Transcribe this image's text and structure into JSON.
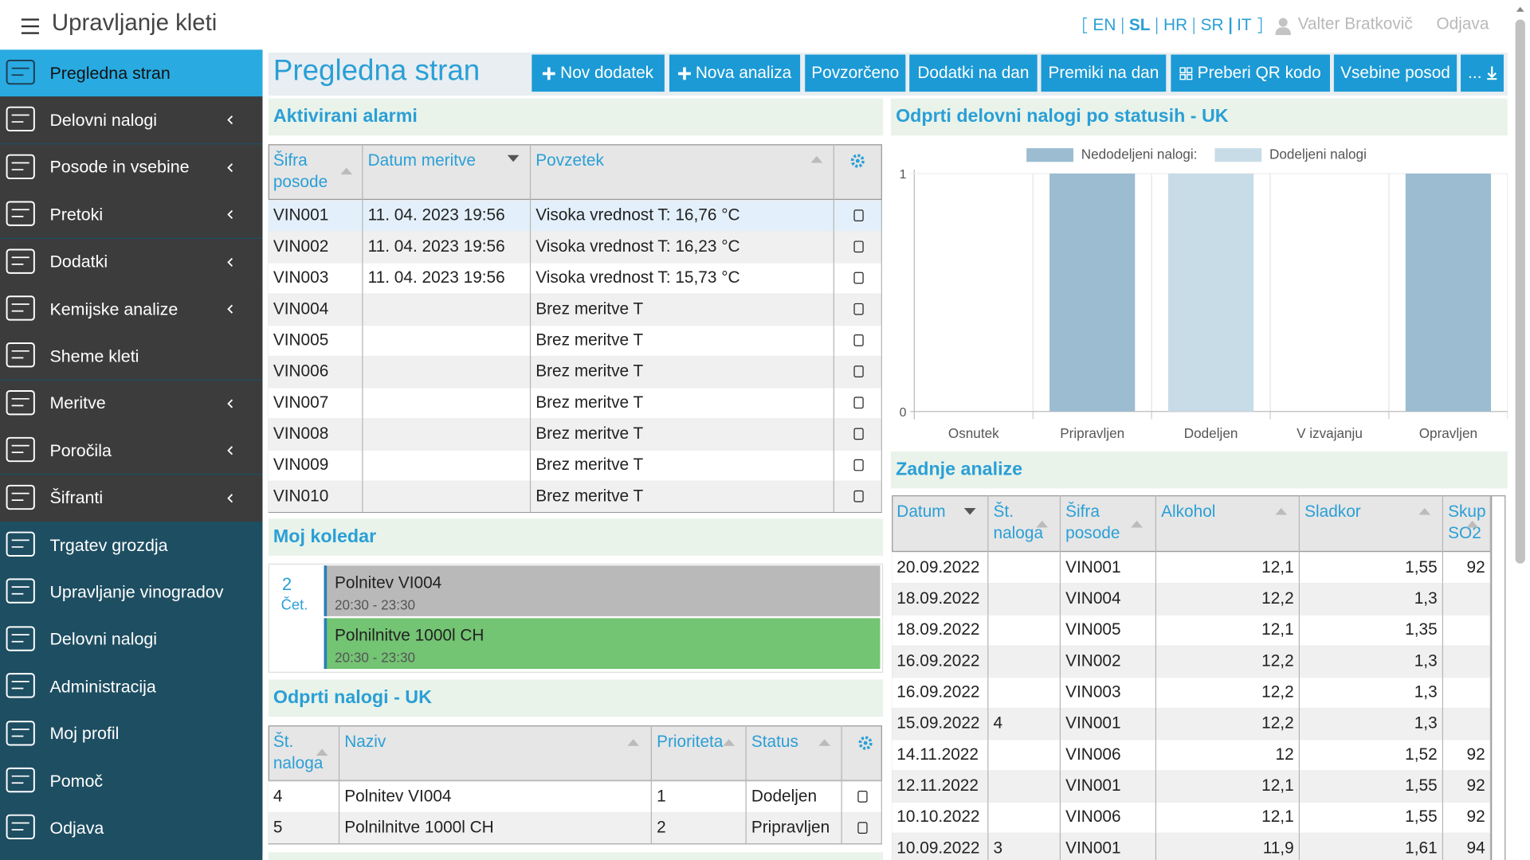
{
  "header": {
    "title": "Upravljanje kleti",
    "languages": [
      "EN",
      "SL",
      "HR",
      "SR",
      "IT"
    ],
    "active_language": "SL",
    "user": "Valter Bratkovič",
    "logout": "Odjava"
  },
  "sidebar": {
    "active": 0,
    "items": [
      {
        "label": "Pregledna stran",
        "expandable": false
      },
      {
        "label": "Delovni nalogi",
        "expandable": true
      },
      {
        "label": "Posode in vsebine",
        "expandable": true
      },
      {
        "label": "Pretoki",
        "expandable": true
      },
      {
        "label": "Dodatki",
        "expandable": true
      },
      {
        "label": "Kemijske analize",
        "expandable": true
      },
      {
        "label": "Sheme kleti",
        "expandable": false
      },
      {
        "label": "Meritve",
        "expandable": true
      },
      {
        "label": "Poročila",
        "expandable": true
      },
      {
        "label": "Šifranti",
        "expandable": true
      },
      {
        "label": "Trgatev grozdja",
        "expandable": false
      },
      {
        "label": "Upravljanje vinogradov",
        "expandable": false
      },
      {
        "label": "Delovni nalogi",
        "expandable": false
      },
      {
        "label": "Administracija",
        "expandable": false
      },
      {
        "label": "Moj profil",
        "expandable": false
      },
      {
        "label": "Pomoč",
        "expandable": false
      },
      {
        "label": "Odjava",
        "expandable": false
      }
    ]
  },
  "page": {
    "title": "Pregledna stran",
    "buttons": [
      "Nov dodatek",
      "Nova analiza",
      "Povzorčeno",
      "Dodatki na dan",
      "Premiki na dan",
      "Preberi QR kodo",
      "Vsebine posod",
      "..."
    ]
  },
  "alarms": {
    "title": "Aktivirani alarmi",
    "columns": [
      "Šifra posode",
      "Datum meritve",
      "Povzetek"
    ],
    "rows": [
      [
        "VIN001",
        "11. 04. 2023 19:56",
        "Visoka vrednost T: 16,76 °C"
      ],
      [
        "VIN002",
        "11. 04. 2023 19:56",
        "Visoka vrednost T: 16,23 °C"
      ],
      [
        "VIN003",
        "11. 04. 2023 19:56",
        "Visoka vrednost T: 15,73 °C"
      ],
      [
        "VIN004",
        null,
        "Brez meritve T"
      ],
      [
        "VIN005",
        null,
        "Brez meritve T"
      ],
      [
        "VIN006",
        null,
        "Brez meritve T"
      ],
      [
        "VIN007",
        null,
        "Brez meritve T"
      ],
      [
        "VIN008",
        null,
        "Brez meritve T"
      ],
      [
        "VIN009",
        null,
        "Brez meritve T"
      ],
      [
        "VIN010",
        null,
        "Brez meritve T"
      ]
    ]
  },
  "calendar": {
    "title": "Moj koledar",
    "day": "2",
    "weekday": "Čet.",
    "events": [
      {
        "title": "Polnitev VI004",
        "time": "20:30 - 23:30",
        "color": "#b9b9b9"
      },
      {
        "title": "Polnilnitve 1000l CH",
        "time": "20:30 - 23:30",
        "color": "#73c473"
      }
    ]
  },
  "orders": {
    "title": "Odprti nalogi - UK",
    "columns": [
      "Št. naloga",
      "Naziv",
      "Prioriteta",
      "Status"
    ],
    "rows": [
      [
        "4",
        "Polnitev VI004",
        "1",
        "Dodeljen"
      ],
      [
        "5",
        "Polnilnitve 1000l CH",
        "2",
        "Pripravljen"
      ]
    ]
  },
  "status_chart": {
    "type": "bar",
    "title": "Odprti delovni nalogi po statusih - UK",
    "categories": [
      "Osnutek",
      "Pripravljen",
      "Dodeljen",
      "V izvajanju",
      "Opravljen"
    ],
    "series": [
      {
        "name": "Nedodeljeni nalogi:",
        "color": "#9bbcd1",
        "values": [
          0,
          1,
          0,
          0,
          1
        ]
      },
      {
        "name": "Dodeljeni nalogi",
        "color": "#c8dce8",
        "values": [
          0,
          0,
          1,
          0,
          0
        ]
      }
    ],
    "stacked": true,
    "ylim": [
      0,
      1
    ],
    "yticks": [
      0,
      1
    ],
    "grid": true
  },
  "analyses": {
    "title": "Zadnje analize",
    "columns": [
      "Datum",
      "Št. naloga",
      "Šifra posode",
      "Alkohol",
      "Sladkor",
      "Skup SO2"
    ],
    "rows": [
      [
        "20.09.2022",
        null,
        "VIN001",
        "12,1",
        "1,55",
        "92"
      ],
      [
        "18.09.2022",
        null,
        "VIN004",
        "12,2",
        "1,3",
        null
      ],
      [
        "18.09.2022",
        null,
        "VIN005",
        "12,1",
        "1,35",
        null
      ],
      [
        "16.09.2022",
        null,
        "VIN002",
        "12,2",
        "1,3",
        null
      ],
      [
        "16.09.2022",
        null,
        "VIN003",
        "12,2",
        "1,3",
        null
      ],
      [
        "15.09.2022",
        "4",
        "VIN001",
        "12,2",
        "1,3",
        null
      ],
      [
        "14.11.2022",
        null,
        "VIN006",
        "12",
        "1,52",
        "92"
      ],
      [
        "12.11.2022",
        null,
        "VIN001",
        "12,1",
        "1,55",
        "92"
      ],
      [
        "10.10.2022",
        null,
        "VIN006",
        "12,1",
        "1,55",
        "92"
      ],
      [
        "10.09.2022",
        "3",
        "VIN001",
        "11,9",
        "1,61",
        "94"
      ]
    ]
  }
}
